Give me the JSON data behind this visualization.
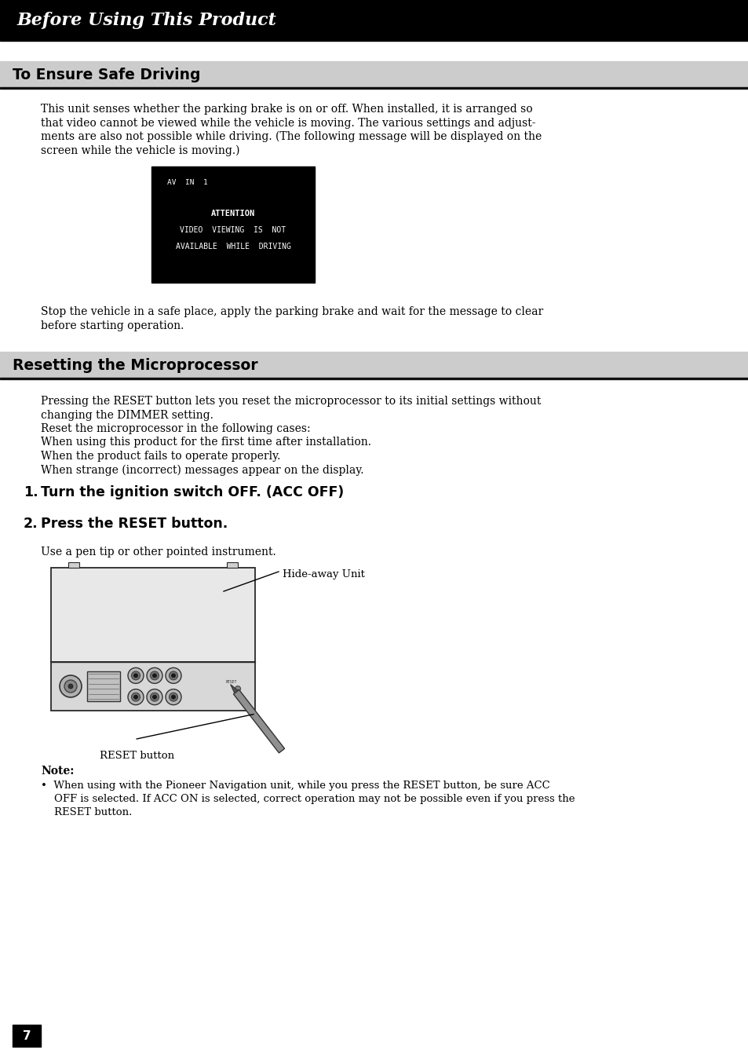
{
  "page_bg": "#ffffff",
  "header_bg": "#000000",
  "header_text": "Before Using This Product",
  "header_text_color": "#ffffff",
  "section1_title": "To Ensure Safe Driving",
  "section1_bg": "#cccccc",
  "section1_body": "This unit senses whether the parking brake is on or off. When installed, it is arranged so\nthat video cannot be viewed while the vehicle is moving. The various settings and adjust-\nments are also not possible while driving. (The following message will be displayed on the\nscreen while the vehicle is moving.)",
  "screen_line1": "AV  IN  1",
  "screen_line2": "ATTENTION",
  "screen_line3": "VIDEO  VIEWING  IS  NOT",
  "screen_line4": "AVAILABLE  WHILE  DRIVING",
  "section1_footer": "Stop the vehicle in a safe place, apply the parking brake and wait for the message to clear\nbefore starting operation.",
  "section2_title": "Resetting the Microprocessor",
  "section2_bg": "#cccccc",
  "section2_body_lines": [
    "Pressing the RESET button lets you reset the microprocessor to its initial settings without",
    "changing the DIMMER setting.",
    "Reset the microprocessor in the following cases:",
    "When using this product for the first time after installation.",
    "When the product fails to operate properly.",
    "When strange (incorrect) messages appear on the display."
  ],
  "step1": "Turn the ignition switch OFF. (ACC OFF)",
  "step2": "Press the RESET button.",
  "step2_body": "Use a pen tip or other pointed instrument.",
  "label_hideaway": "Hide-away Unit",
  "label_reset": "RESET button",
  "note_title": "Note:",
  "note_line1": "•  When using with the Pioneer Navigation unit, while you press the RESET button, be sure ACC",
  "note_line2": "    OFF is selected. If ACC ON is selected, correct operation may not be possible even if you press the",
  "note_line3": "    RESET button.",
  "page_number": "7"
}
